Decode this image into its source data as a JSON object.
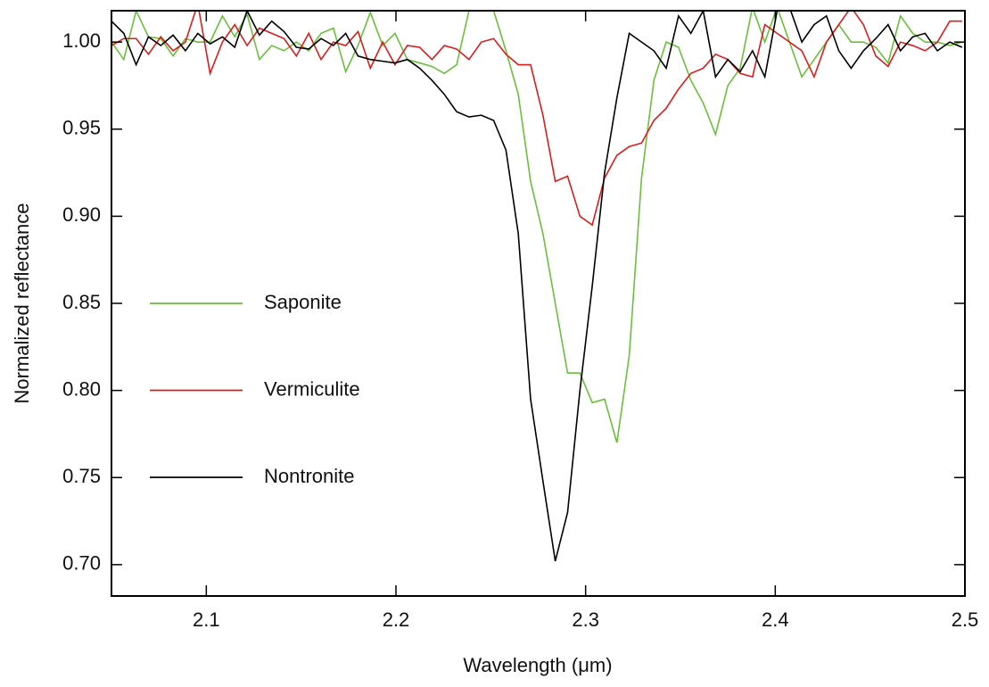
{
  "chart_data": {
    "type": "line",
    "x_label": "Wavelength (μm)",
    "y_label": "Normalized reflectance",
    "xlim": [
      2.05,
      2.5
    ],
    "ylim": [
      0.682,
      1.018
    ],
    "xticks": [
      2.1,
      2.2,
      2.3,
      2.4,
      2.5
    ],
    "yticks": [
      {
        "value": 0.7,
        "label": "0.70"
      },
      0.75,
      {
        "value": 0.8,
        "label": "0.80"
      },
      0.85,
      {
        "value": 0.9,
        "label": "0.90"
      },
      0.95,
      {
        "value": 1.0,
        "label": "1.00"
      }
    ],
    "legend": "left",
    "x": [
      2.05,
      2.0565,
      2.063,
      2.0695,
      2.076,
      2.0825,
      2.089,
      2.0955,
      2.102,
      2.1085,
      2.115,
      2.1215,
      2.128,
      2.1345,
      2.141,
      2.1475,
      2.154,
      2.1605,
      2.167,
      2.1735,
      2.18,
      2.1865,
      2.193,
      2.1995,
      2.206,
      2.2125,
      2.219,
      2.2255,
      2.232,
      2.2385,
      2.245,
      2.2515,
      2.258,
      2.2645,
      2.271,
      2.2775,
      2.284,
      2.2905,
      2.297,
      2.3035,
      2.31,
      2.3165,
      2.323,
      2.3295,
      2.336,
      2.3425,
      2.349,
      2.3555,
      2.362,
      2.3685,
      2.375,
      2.3815,
      2.388,
      2.3945,
      2.401,
      2.4075,
      2.414,
      2.4205,
      2.427,
      2.4335,
      2.44,
      2.4465,
      2.453,
      2.4595,
      2.466,
      2.4725,
      2.479,
      2.4855,
      2.492,
      2.4985
    ],
    "series": [
      {
        "name": "Saponite",
        "color": "#6abf3c",
        "values": [
          1.0,
          0.99,
          1.018,
          1.003,
          1.002,
          0.992,
          1.002,
          1.0,
          1.0,
          1.015,
          1.003,
          1.016,
          0.99,
          0.998,
          0.995,
          1.0,
          0.995,
          1.005,
          1.008,
          0.983,
          0.998,
          1.017,
          0.998,
          1.005,
          0.99,
          0.988,
          0.986,
          0.982,
          0.987,
          1.018,
          1.022,
          1.018,
          0.995,
          0.97,
          0.92,
          0.89,
          0.85,
          0.81,
          0.81,
          0.793,
          0.795,
          0.77,
          0.82,
          0.922,
          0.978,
          1.0,
          0.997,
          0.978,
          0.965,
          0.947,
          0.975,
          0.985,
          1.02,
          1.0,
          1.02,
          1.0,
          0.98,
          0.99,
          1.0,
          1.01,
          1.0,
          1.0,
          0.997,
          0.988,
          1.015,
          1.005,
          1.0,
          1.0,
          0.998,
          1.0
        ]
      },
      {
        "name": "Vermiculite",
        "color": "#d81e1e",
        "values": [
          0.998,
          1.002,
          1.002,
          0.993,
          1.003,
          0.995,
          1.0,
          1.022,
          0.982,
          1.0,
          1.01,
          0.998,
          1.008,
          1.005,
          1.002,
          0.992,
          1.005,
          0.99,
          1.0,
          0.998,
          1.006,
          0.985,
          1.0,
          0.987,
          0.998,
          0.997,
          0.99,
          0.998,
          0.996,
          0.99,
          1.0,
          1.002,
          0.993,
          0.987,
          0.987,
          0.958,
          0.92,
          0.923,
          0.9,
          0.895,
          0.922,
          0.935,
          0.94,
          0.942,
          0.955,
          0.962,
          0.973,
          0.982,
          0.985,
          0.993,
          0.99,
          0.982,
          0.98,
          1.01,
          1.005,
          1.0,
          0.995,
          0.98,
          1.0,
          1.01,
          1.02,
          1.01,
          0.992,
          0.986,
          1.0,
          0.998,
          0.995,
          1.0,
          1.012,
          1.012
        ]
      },
      {
        "name": "Nontronite",
        "color": "#000000",
        "values": [
          1.012,
          1.005,
          0.987,
          1.003,
          0.998,
          1.004,
          0.995,
          1.005,
          0.999,
          1.003,
          0.997,
          1.018,
          1.004,
          1.012,
          1.006,
          0.997,
          0.996,
          1.002,
          0.998,
          1.005,
          0.992,
          0.99,
          0.989,
          0.988,
          0.99,
          0.985,
          0.978,
          0.97,
          0.96,
          0.957,
          0.958,
          0.955,
          0.938,
          0.89,
          0.795,
          0.748,
          0.702,
          0.73,
          0.8,
          0.86,
          0.925,
          0.968,
          1.005,
          1.0,
          0.995,
          0.985,
          1.015,
          1.005,
          1.018,
          0.98,
          0.99,
          0.983,
          0.995,
          0.98,
          1.018,
          1.02,
          1.0,
          1.01,
          1.015,
          0.995,
          0.985,
          0.995,
          1.002,
          1.01,
          0.995,
          1.003,
          1.005,
          0.995,
          1.0,
          0.997
        ]
      }
    ]
  }
}
